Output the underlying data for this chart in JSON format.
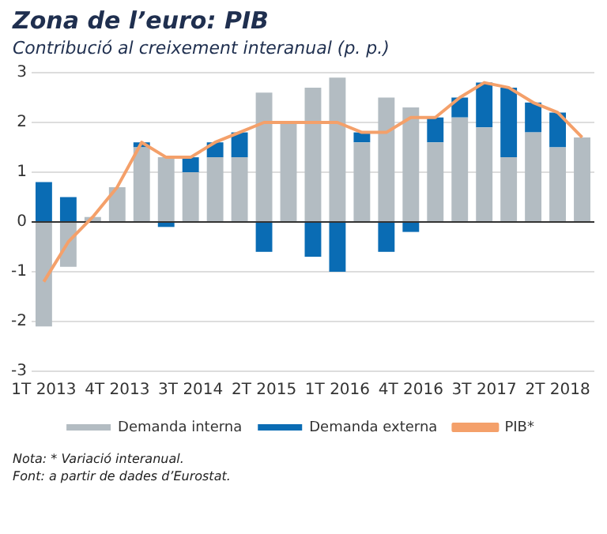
{
  "chart_data": {
    "type": "bar",
    "stacked": true,
    "title": "Zona de l’euro: PIB",
    "subtitle": "Contribució al creixement interanual (p. p.)",
    "categories": [
      "1T 2013",
      null,
      null,
      "4T 2013",
      null,
      null,
      "3T 2014",
      null,
      null,
      "2T 2015",
      null,
      null,
      "1T 2016",
      null,
      null,
      "4T 2016",
      null,
      null,
      "3T 2017",
      null,
      null,
      "2T 2018",
      null
    ],
    "series": [
      {
        "name": "Demanda interna",
        "color": "#b3bcc2",
        "values": [
          -2.1,
          -0.9,
          0.1,
          0.7,
          1.5,
          1.3,
          1.0,
          1.3,
          1.3,
          2.6,
          2.0,
          2.7,
          2.9,
          1.6,
          2.5,
          2.3,
          1.6,
          2.1,
          1.9,
          1.3,
          1.8,
          1.5,
          1.7
        ]
      },
      {
        "name": "Demanda externa",
        "color": "#0a6cb4",
        "values": [
          0.8,
          0.5,
          0.0,
          0.0,
          0.1,
          -0.1,
          0.3,
          0.3,
          0.5,
          -0.6,
          0.0,
          -0.7,
          -1.0,
          0.2,
          -0.6,
          -0.2,
          0.5,
          0.4,
          0.9,
          1.4,
          0.6,
          0.7,
          0.0
        ]
      },
      {
        "name": "PIB*",
        "type": "line",
        "color": "#f4a06a",
        "values": [
          -1.2,
          -0.4,
          0.1,
          0.7,
          1.6,
          1.3,
          1.3,
          1.6,
          1.8,
          2.0,
          2.0,
          2.0,
          2.0,
          1.8,
          1.8,
          2.1,
          2.1,
          2.5,
          2.8,
          2.7,
          2.4,
          2.2,
          1.7
        ]
      }
    ],
    "ylim": [
      -3,
      3
    ],
    "yticks": [
      -3,
      -2,
      -1,
      0,
      1,
      2,
      3
    ],
    "grid": "y",
    "legend": "bottom",
    "marker": "none",
    "annotations": [
      "Nota: * Variació interanual.",
      "Font: a partir de dades d’Eurostat."
    ]
  }
}
